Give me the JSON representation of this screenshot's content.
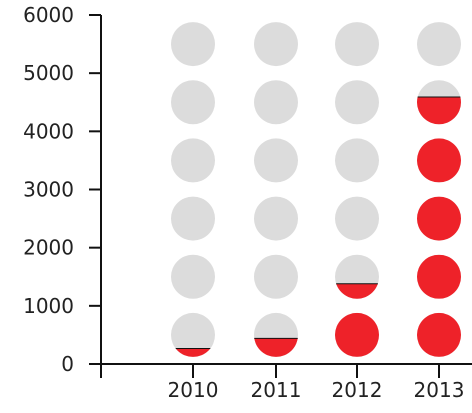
{
  "chart_data": {
    "type": "pictograph",
    "categories": [
      "2010",
      "2011",
      "2012",
      "2013"
    ],
    "values": [
      190,
      420,
      1340,
      4620
    ],
    "unit_per_symbol": 1000,
    "symbols_per_column": 6,
    "yticks": [
      0,
      1000,
      2000,
      3000,
      4000,
      5000,
      6000
    ],
    "ylim": [
      0,
      6000
    ],
    "title": "",
    "xlabel": "",
    "ylabel": "",
    "grid": false,
    "legend": "none",
    "colors": {
      "filled": "#ee2229",
      "empty": "#dcdcdc",
      "axis": "#111111",
      "text": "#222222"
    }
  }
}
